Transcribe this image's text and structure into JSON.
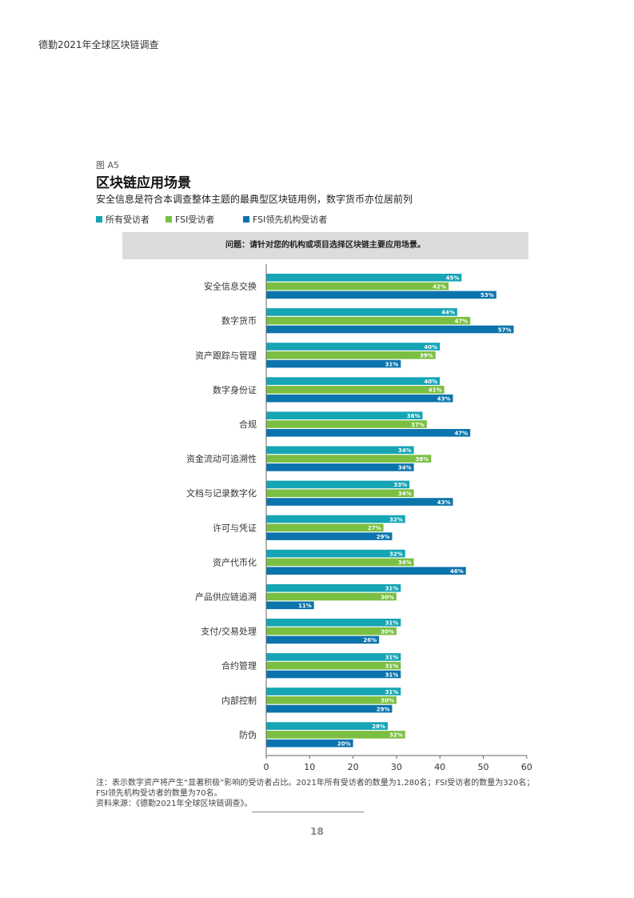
{
  "header": {
    "title": "德勤2021年全球区块链调查"
  },
  "figure": {
    "label": "图 A5",
    "title": "区块链应用场景",
    "subtitle": "安全信息是符合本调查整体主题的最典型区块链用例，数字货币亦位居前列",
    "question": "问题：请针对您的机构或项目选择区块链主要应用场景。"
  },
  "colors": {
    "all": "#15a5b5",
    "fsi": "#7bbf42",
    "fsi_lead": "#0b74ac"
  },
  "chart_data": {
    "type": "bar",
    "orientation": "horizontal",
    "categories": [
      "安全信息交换",
      "数字货币",
      "资产跟踪与管理",
      "数字身份证",
      "合规",
      "资金流动可追溯性",
      "文档与记录数字化",
      "许可与凭证",
      "资产代币化",
      "产品供应链追溯",
      "支付/交易处理",
      "合约管理",
      "内部控制",
      "防伪"
    ],
    "series": [
      {
        "name": "所有受访者",
        "values": [
          45,
          44,
          40,
          40,
          36,
          34,
          33,
          32,
          32,
          31,
          31,
          31,
          31,
          28
        ]
      },
      {
        "name": "FSI受访者",
        "values": [
          42,
          47,
          39,
          41,
          37,
          38,
          34,
          27,
          34,
          30,
          30,
          31,
          30,
          32
        ]
      },
      {
        "name": "FSI领先机构受访者",
        "values": [
          53,
          57,
          31,
          43,
          47,
          34,
          43,
          29,
          46,
          11,
          26,
          31,
          29,
          20
        ]
      }
    ],
    "value_suffix": "%",
    "xlim": [
      0,
      60
    ],
    "xticks": [
      "0",
      "10",
      "20",
      "30",
      "40",
      "50",
      "60"
    ],
    "legend": "top-left",
    "grid": false
  },
  "footnote": {
    "line1": "注：表示数字资产将产生“显著积极”影响的受访者占比。2021年所有受访者的数量为1,280名；FSI受访者的数量为320名；",
    "line2": "FSI领先机构受访者的数量为70名。",
    "source": "资料来源：《德勤2021年全球区块链调查》。"
  },
  "page": {
    "number": "18"
  }
}
